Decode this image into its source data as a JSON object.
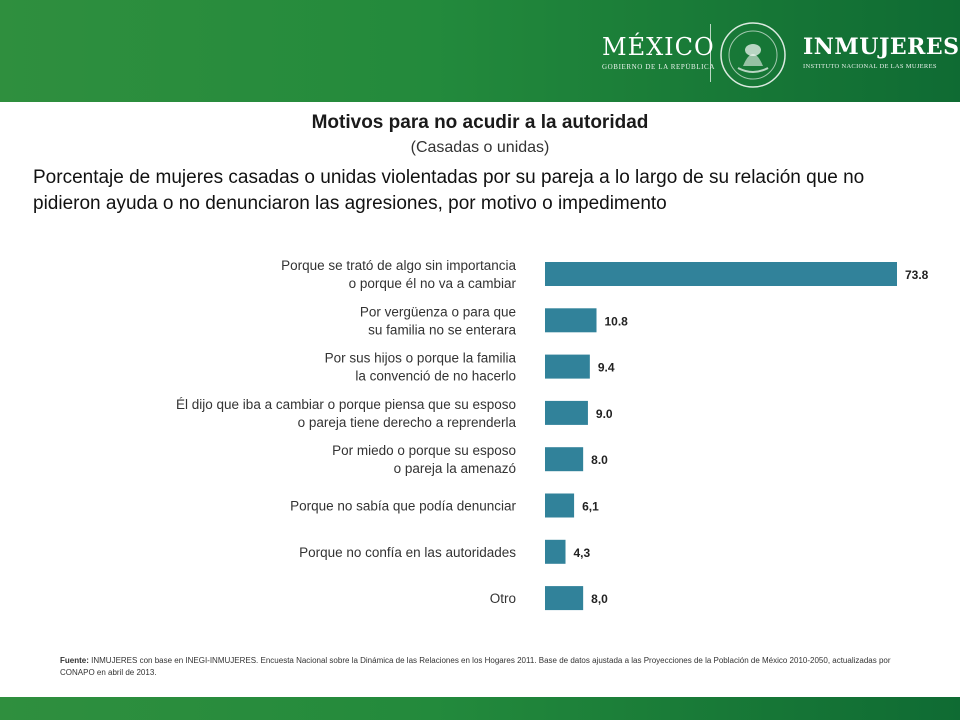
{
  "header": {
    "brand_left": "MÉXICO",
    "brand_left_sub": "GOBIERNO DE LA REPÚBLICA",
    "seal_text": "ESTADOS UNIDOS MEXICANOS",
    "brand_right": "INMUJERES",
    "brand_right_sub": "INSTITUTO NACIONAL DE LAS MUJERES",
    "color": "#238a3c"
  },
  "title": "Motivos para no acudir a la autoridad",
  "subtitle": "(Casadas o unidas)",
  "description": "Porcentaje de mujeres casadas o unidas violentadas por su pareja a lo largo de su relación que no pidieron ayuda o no denunciaron las agresiones, por motivo o impedimento",
  "chart_data": {
    "type": "bar",
    "orientation": "horizontal",
    "bar_color": "#31829a",
    "xlim": [
      0,
      73.8
    ],
    "grid": false,
    "categories": [
      [
        "Porque se trató de algo sin importancia",
        "o porque él no va a cambiar"
      ],
      [
        "Por vergüenza o para que",
        "su familia no se enterara"
      ],
      [
        "Por sus hijos o porque la familia",
        "la convenció de no hacerlo"
      ],
      [
        "Él dijo que iba a cambiar o porque piensa que su esposo",
        "o pareja tiene derecho a reprenderla"
      ],
      [
        "Por miedo o porque su esposo",
        "o pareja la amenazó"
      ],
      [
        "Porque no sabía que podía denunciar"
      ],
      [
        "Porque no confía en las autoridades"
      ],
      [
        "Otro"
      ]
    ],
    "values": [
      73.8,
      10.8,
      9.4,
      9.0,
      8.0,
      6.1,
      4.3,
      8.0
    ],
    "value_labels": [
      "73.8",
      "10.8",
      "9.4",
      "9.0",
      "8.0",
      "6,1",
      "4,3",
      "8,0"
    ]
  },
  "footer": {
    "source_label": "Fuente:",
    "source_text": "INMUJERES con base en INEGI-INMUJERES. Encuesta Nacional sobre la Dinámica de las Relaciones en los Hogares 2011. Base de datos ajustada a las Proyecciones de la Población de México 2010-2050, actualizadas por CONAPO en abril de 2013.",
    "color": "#238a3c"
  }
}
